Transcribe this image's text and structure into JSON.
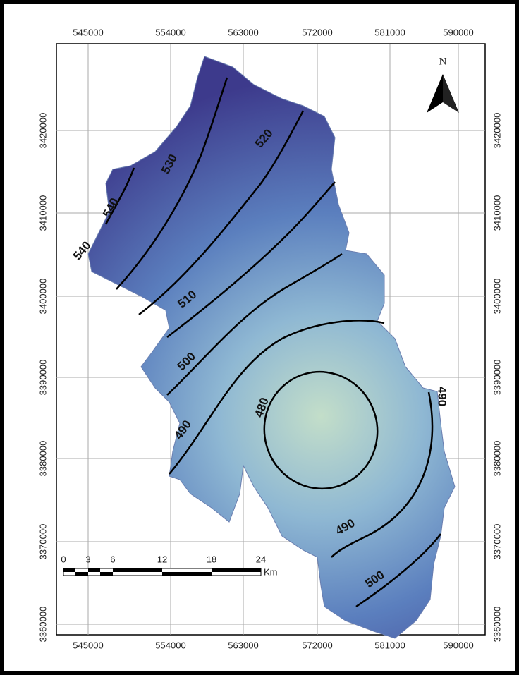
{
  "map": {
    "x_labels": [
      "545000",
      "554000",
      "563000",
      "572000",
      "581000",
      "590000"
    ],
    "y_labels": [
      "3420000",
      "3410000",
      "3400000",
      "3390000",
      "3380000",
      "3370000",
      "3360000"
    ],
    "contour_labels": [
      "540",
      "540",
      "530",
      "520",
      "510",
      "500",
      "490",
      "480",
      "490",
      "490",
      "500"
    ],
    "north": "N",
    "scale": {
      "labels": [
        "0",
        "3",
        "6",
        "12",
        "18",
        "24"
      ],
      "unit": "Km"
    }
  }
}
